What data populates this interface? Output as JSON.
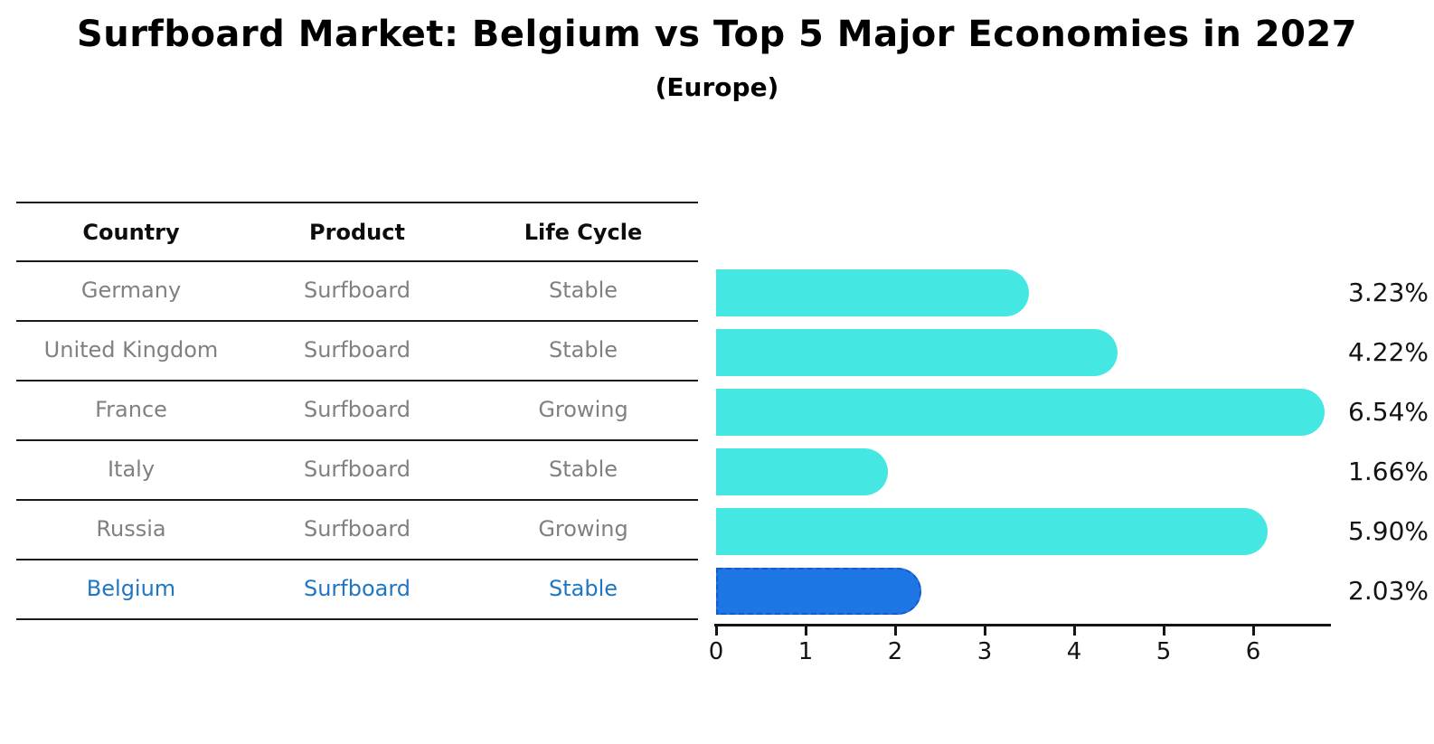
{
  "title": "Surfboard Market: Belgium vs Top 5 Major Economies in 2027",
  "subtitle": "(Europe)",
  "table": {
    "headers": [
      "Country",
      "Product",
      "Life Cycle"
    ],
    "rows": [
      {
        "country": "Germany",
        "product": "Surfboard",
        "life_cycle": "Stable"
      },
      {
        "country": "United Kingdom",
        "product": "Surfboard",
        "life_cycle": "Stable"
      },
      {
        "country": "France",
        "product": "Surfboard",
        "life_cycle": "Growing"
      },
      {
        "country": "Italy",
        "product": "Surfboard",
        "life_cycle": "Stable"
      },
      {
        "country": "Russia",
        "product": "Surfboard",
        "life_cycle": "Growing"
      },
      {
        "country": "Belgium",
        "product": "Surfboard",
        "life_cycle": "Stable"
      }
    ],
    "highlighted_row": "Belgium"
  },
  "chart_data": {
    "type": "bar",
    "orientation": "horizontal",
    "categories": [
      "Germany",
      "United Kingdom",
      "France",
      "Italy",
      "Russia",
      "Belgium"
    ],
    "values": [
      3.23,
      4.22,
      6.54,
      1.66,
      5.9,
      2.03
    ],
    "labels": [
      "3.23%",
      "4.22%",
      "6.54%",
      "1.66%",
      "5.90%",
      "2.03%"
    ],
    "x_ticks": [
      0,
      1,
      2,
      3,
      4,
      5,
      6
    ],
    "xlim": [
      0,
      6.87
    ],
    "title": "Surfboard Market: Belgium vs Top 5 Major Economies in 2027 (Europe)",
    "xlabel": "",
    "ylabel": "",
    "grid": false,
    "legend": false,
    "bar_color": "#45E7E3",
    "highlight_color": "#1E76E4",
    "highlight_border_color": "#1359CF",
    "highlight_index": 5
  },
  "colors": {
    "text_primary": "#000000",
    "text_muted": "#808080",
    "highlight_text": "#1F76C2",
    "axis": "#141414"
  }
}
